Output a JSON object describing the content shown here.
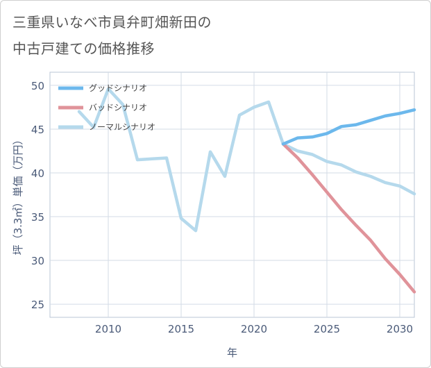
{
  "title_lines": [
    "三重県いなべ市員弁町畑新田の",
    "中古戸建ての価格推移"
  ],
  "chart_data": {
    "type": "line",
    "xlabel": "年",
    "ylabel": "坪（3.3㎡）単価（万円）",
    "xlim": [
      2006,
      2031
    ],
    "ylim": [
      23.5,
      51.5
    ],
    "xticks": [
      2010,
      2015,
      2020,
      2025,
      2030
    ],
    "yticks": [
      25,
      30,
      35,
      40,
      45,
      50
    ],
    "grid": true,
    "legend_position": "top-left",
    "series": [
      {
        "name": "グッドシナリオ",
        "color": "#6cb8ec",
        "x": [
          2022,
          2023,
          2024,
          2025,
          2026,
          2027,
          2028,
          2029,
          2030,
          2031
        ],
        "y": [
          43.3,
          44.0,
          44.1,
          44.5,
          45.3,
          45.5,
          46.0,
          46.5,
          46.8,
          47.2
        ]
      },
      {
        "name": "バッドシナリオ",
        "color": "#e0939a",
        "x": [
          2022,
          2023,
          2024,
          2025,
          2026,
          2027,
          2028,
          2029,
          2030,
          2031
        ],
        "y": [
          43.3,
          41.7,
          39.8,
          37.8,
          35.8,
          34.0,
          32.3,
          30.2,
          28.4,
          26.4
        ]
      },
      {
        "name": "ノーマルシナリオ",
        "color": "#b5d9ec",
        "x": [
          2008,
          2009,
          2010,
          2011,
          2012,
          2013,
          2014,
          2015,
          2016,
          2017,
          2018,
          2019,
          2020,
          2021,
          2022,
          2023,
          2024,
          2025,
          2026,
          2027,
          2028,
          2029,
          2030,
          2031
        ],
        "y": [
          47.0,
          45.2,
          49.6,
          47.8,
          41.5,
          41.6,
          41.7,
          34.8,
          33.4,
          42.4,
          39.6,
          46.6,
          47.5,
          48.1,
          43.3,
          42.5,
          42.1,
          41.3,
          40.9,
          40.1,
          39.6,
          38.9,
          38.5,
          37.6
        ]
      }
    ]
  }
}
